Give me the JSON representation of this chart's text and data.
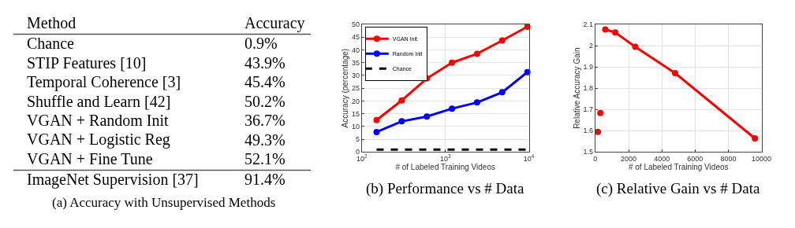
{
  "chart_data": [
    {
      "type": "other",
      "title": "(a) Accuracy with Unsupervised Methods",
      "annotations": [
        "Method",
        "Accuracy"
      ],
      "categories": [
        "Chance",
        "STIP Features [10]",
        "Temporal Coherence [3]",
        "Shuffle and Learn [42]",
        "VGAN + Random Init",
        "VGAN + Logistic Reg",
        "VGAN + Fine Tune",
        "ImageNet Supervision [37]"
      ],
      "value_labels": [
        "0.9%",
        "43.9%",
        "45.4%",
        "50.2%",
        "36.7%",
        "49.3%",
        "52.1%",
        "91.4%"
      ]
    },
    {
      "type": "line",
      "title": "(b) Performance vs # Data",
      "xlabel": "# of Labeled Training Videos",
      "ylabel": "Accuracy (percentage)",
      "log": "x",
      "grid": true,
      "legend": "top left",
      "marker": "circle",
      "xlim": [
        100,
        10000
      ],
      "xticks": [
        {
          "value": 100,
          "label": "10$^{2}$"
        },
        {
          "value": 1000,
          "label": "10$^{3}$"
        },
        {
          "value": 10000,
          "label": "10$^{4}$"
        }
      ],
      "ylim": [
        0,
        50
      ],
      "yticks": [
        0,
        5,
        10,
        15,
        20,
        25,
        30,
        35,
        40,
        45,
        50
      ],
      "series": [
        {
          "name": "VGAN Init",
          "color": "#ff0000",
          "x": [
            150,
            300,
            600,
            1200,
            2400,
            4800,
            9600
          ],
          "values": [
            12.5,
            20.2,
            28.8,
            35.0,
            38.5,
            43.7,
            49.1
          ]
        },
        {
          "name": "Random Init",
          "color": "#0000ff",
          "x": [
            150,
            300,
            600,
            1200,
            2400,
            4800,
            9600
          ],
          "values": [
            7.8,
            12.0,
            13.9,
            17.0,
            19.4,
            23.4,
            31.3
          ]
        },
        {
          "name": "Chance",
          "color": "#000000",
          "x": [
            150,
            9600
          ],
          "values": [
            0.9,
            0.9
          ],
          "marker": "none",
          "line_style": "dashed"
        }
      ]
    },
    {
      "type": "line",
      "title": "(c) Relative Gain vs # Data",
      "xlabel": "# of Labeled Training Videos",
      "ylabel": "Relative Accuracy Gain",
      "grid": true,
      "marker": "circle",
      "xlim": [
        0,
        10000
      ],
      "xticks": [
        0,
        2000,
        4000,
        6000,
        8000,
        10000
      ],
      "ylim": [
        1.5,
        2.1
      ],
      "yticks": [
        1.5,
        1.6,
        1.7,
        1.8,
        1.9,
        2,
        2.1
      ],
      "series": [
        {
          "type": "scatter",
          "color": "#ff0000",
          "x": [
            150,
            300
          ],
          "values": [
            1.594,
            1.683
          ]
        },
        {
          "color": "#ff0000",
          "x": [
            600,
            1200,
            2400,
            4800,
            9600
          ],
          "values": [
            2.076,
            2.062,
            1.995,
            1.871,
            1.564
          ]
        }
      ]
    }
  ]
}
